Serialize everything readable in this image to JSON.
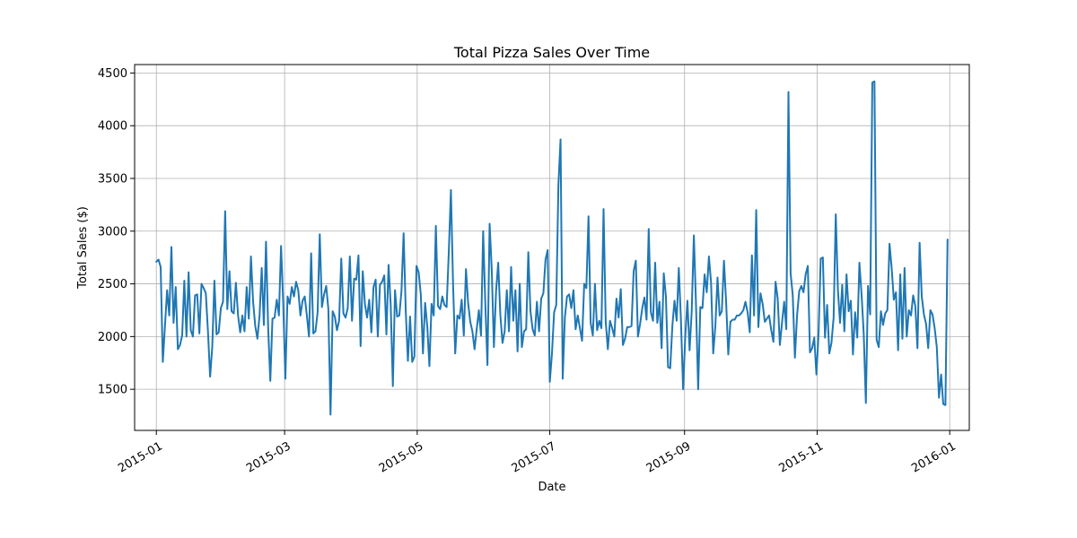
{
  "chart_data": {
    "type": "line",
    "title": "Total Pizza Sales Over Time",
    "xlabel": "Date",
    "ylabel": "Total Sales ($)",
    "xlim": [
      "2014-12-22",
      "2016-01-10"
    ],
    "ylim": [
      1110,
      4580
    ],
    "grid": true,
    "line_color": "#1f77b4",
    "x_ticks": [
      "2015-01",
      "2015-03",
      "2015-05",
      "2015-07",
      "2015-09",
      "2015-11",
      "2016-01"
    ],
    "y_ticks": [
      1500,
      2000,
      2500,
      3000,
      3500,
      4000,
      4500
    ],
    "series": [
      {
        "x_start": "2015-01-01",
        "x_end": "2015-12-31",
        "values": [
          2710,
          2730,
          2660,
          1760,
          2100,
          2440,
          2200,
          2850,
          2130,
          2470,
          1880,
          1920,
          2010,
          2530,
          2000,
          2610,
          2060,
          2000,
          2390,
          2400,
          2030,
          2500,
          2460,
          2410,
          2050,
          1620,
          1900,
          2530,
          2020,
          2040,
          2270,
          2330,
          3190,
          2260,
          2620,
          2240,
          2220,
          2510,
          2200,
          2040,
          2200,
          2050,
          2470,
          2170,
          2760,
          2330,
          2100,
          1980,
          2200,
          2650,
          2110,
          2900,
          2080,
          1580,
          2170,
          2180,
          2350,
          2200,
          2860,
          2320,
          1600,
          2380,
          2310,
          2470,
          2380,
          2520,
          2440,
          2200,
          2340,
          2380,
          2200,
          2000,
          2790,
          2030,
          2050,
          2230,
          2970,
          2280,
          2400,
          2480,
          2260,
          1260,
          2240,
          2190,
          2060,
          2150,
          2740,
          2220,
          2180,
          2270,
          2760,
          2150,
          2550,
          2540,
          2770,
          1910,
          2620,
          2310,
          2180,
          2350,
          2040,
          2470,
          2540,
          2000,
          2490,
          2520,
          2580,
          2020,
          2680,
          2300,
          1530,
          2440,
          2190,
          2200,
          2430,
          2980,
          2240,
          1770,
          2190,
          1760,
          1810,
          2670,
          2610,
          2400,
          1840,
          2320,
          2100,
          1720,
          2310,
          2200,
          3050,
          2290,
          2260,
          2380,
          2300,
          2280,
          2790,
          3390,
          2500,
          1840,
          2200,
          2170,
          2350,
          2010,
          2640,
          2320,
          2140,
          2050,
          1880,
          2070,
          2250,
          2010,
          3000,
          2310,
          1730,
          3070,
          2630,
          1900,
          2430,
          2700,
          2200,
          1940,
          2050,
          2440,
          2050,
          2660,
          2150,
          2440,
          1860,
          2500,
          1900,
          2050,
          2070,
          2800,
          2240,
          2070,
          2010,
          2330,
          2050,
          2360,
          2410,
          2730,
          2820,
          1570,
          1840,
          2230,
          2300,
          3440,
          3870,
          1600,
          2180,
          2380,
          2400,
          2270,
          2440,
          2070,
          2200,
          2080,
          1960,
          2500,
          2460,
          3140,
          2130,
          2010,
          2500,
          2060,
          2150,
          2080,
          3210,
          2140,
          1880,
          2150,
          2080,
          2000,
          2360,
          2180,
          2450,
          1920,
          1980,
          2090,
          2090,
          2100,
          2620,
          2720,
          2000,
          2120,
          2270,
          2370,
          2160,
          3020,
          2230,
          2150,
          2700,
          2130,
          2330,
          1890,
          2600,
          2380,
          1710,
          1700,
          2100,
          2340,
          2150,
          2650,
          2150,
          1500,
          2000,
          2340,
          1870,
          2240,
          2960,
          2300,
          1500,
          2280,
          2270,
          2590,
          2420,
          2760,
          2510,
          1840,
          2100,
          2560,
          2200,
          2240,
          2720,
          2330,
          1830,
          2140,
          2160,
          2160,
          2200,
          2200,
          2220,
          2250,
          2330,
          2230,
          2040,
          2770,
          2200,
          3200,
          2090,
          2410,
          2310,
          2140,
          2170,
          2200,
          2060,
          1950,
          2520,
          2360,
          1920,
          2130,
          2330,
          2070,
          4320,
          2600,
          2390,
          1800,
          2200,
          2430,
          2480,
          2420,
          2590,
          2670,
          1850,
          1890,
          1990,
          1640,
          2030,
          2740,
          2750,
          1990,
          2300,
          1840,
          1940,
          2180,
          3160,
          2440,
          2130,
          2490,
          2050,
          2590,
          2240,
          2340,
          1830,
          2230,
          1990,
          2700,
          2400,
          2030,
          1370,
          2480,
          2210,
          4410,
          4420,
          1970,
          1900,
          2240,
          2110,
          2220,
          2250,
          2880,
          2650,
          2350,
          2420,
          1870,
          2590,
          1980,
          2650,
          2000,
          2250,
          2200,
          2390,
          2290,
          1890,
          2890,
          2380,
          2210,
          2120,
          1890,
          2250,
          2210,
          2080,
          1900,
          1420,
          1640,
          1360,
          1350,
          2920
        ]
      }
    ]
  }
}
